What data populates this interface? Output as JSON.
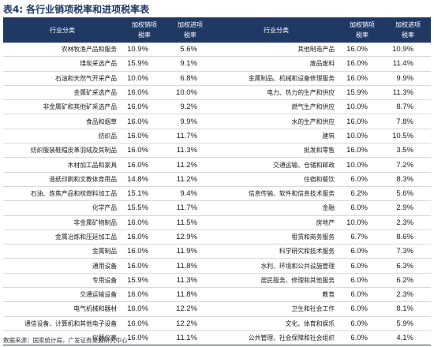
{
  "caption": {
    "number": "表4:",
    "title": "各行业销项税率和进项税率表"
  },
  "headers": {
    "industry_left": "行业分类",
    "output_tax_left": [
      "加权销项",
      "税率"
    ],
    "input_tax_left": [
      "加权进项",
      "税率"
    ],
    "industry_right": "行业分类",
    "output_tax_right": [
      "加权销项",
      "税率"
    ],
    "input_tax_right": [
      "加权进项",
      "税率"
    ]
  },
  "rows": [
    {
      "left": [
        "农林牧渔产品和服务",
        "10.9%",
        "5.6%"
      ],
      "right": [
        "其他制造产品",
        "16.0%",
        "10.9%"
      ]
    },
    {
      "left": [
        "煤炭采选产品",
        "15.9%",
        "9.1%"
      ],
      "right": [
        "废品废料",
        "16.0%",
        "11.4%"
      ]
    },
    {
      "left": [
        "石油和天然气开采产品",
        "10.0%",
        "6.8%"
      ],
      "right": [
        "金属制品、机械和设备修理服务",
        "16.0%",
        "9.9%"
      ]
    },
    {
      "left": [
        "金属矿采选产品",
        "16.0%",
        "10.0%"
      ],
      "right": [
        "电力、热力的生产和供应",
        "15.9%",
        "11.3%"
      ]
    },
    {
      "left": [
        "非金属矿和其他矿采选产品",
        "16.0%",
        "9.2%"
      ],
      "right": [
        "燃气生产和供应",
        "10.0%",
        "8.7%"
      ]
    },
    {
      "left": [
        "食品和烟草",
        "16.0%",
        "9.9%"
      ],
      "right": [
        "水的生产和供应",
        "16.0%",
        "7.8%"
      ]
    },
    {
      "left": [
        "纺织品",
        "16.0%",
        "11.7%"
      ],
      "right": [
        "建筑",
        "10.0%",
        "10.5%"
      ]
    },
    {
      "left": [
        "纺织服装鞋帽皮革羽绒及其制品",
        "16.0%",
        "11.3%"
      ],
      "right": [
        "批发和零售",
        "16.0%",
        "3.5%"
      ]
    },
    {
      "left": [
        "木材加工品和家具",
        "16.0%",
        "11.2%"
      ],
      "right": [
        "交通运输、仓储和邮政",
        "10.0%",
        "7.2%"
      ]
    },
    {
      "left": [
        "造纸印刷和文教体育用品",
        "14.8%",
        "11.2%"
      ],
      "right": [
        "住宿和餐饮",
        "6.0%",
        "8.3%"
      ]
    },
    {
      "left": [
        "石油、炼焦产品和核燃料加工品",
        "15.1%",
        "9.4%"
      ],
      "right": [
        "信息传输、软件和信息技术服务",
        "6.2%",
        "5.6%"
      ]
    },
    {
      "left": [
        "化学产品",
        "15.5%",
        "11.7%"
      ],
      "right": [
        "金融",
        "6.0%",
        "2.9%"
      ]
    },
    {
      "left": [
        "非金属矿物制品",
        "16.0%",
        "11.5%"
      ],
      "right": [
        "房地产",
        "10.0%",
        "2.3%"
      ]
    },
    {
      "left": [
        "金属冶炼和压延加工品",
        "16.0%",
        "12.9%"
      ],
      "right": [
        "租赁和商务服务",
        "6.7%",
        "8.6%"
      ]
    },
    {
      "left": [
        "金属制品",
        "16.0%",
        "11.9%"
      ],
      "right": [
        "科学研究和技术服务",
        "6.0%",
        "7.3%"
      ]
    },
    {
      "left": [
        "通用设备",
        "16.0%",
        "11.8%"
      ],
      "right": [
        "水利、环境和公共设施管理",
        "6.0%",
        "6.3%"
      ]
    },
    {
      "left": [
        "专用设备",
        "15.9%",
        "11.3%"
      ],
      "right": [
        "居民服务、修理和其他服务",
        "6.0%",
        "6.2%"
      ]
    },
    {
      "left": [
        "交通运输设备",
        "16.0%",
        "11.8%"
      ],
      "right": [
        "教育",
        "6.0%",
        "2.3%"
      ]
    },
    {
      "left": [
        "电气机械和器材",
        "16.0%",
        "12.2%"
      ],
      "right": [
        "卫生和社会工作",
        "6.0%",
        "8.1%"
      ]
    },
    {
      "left": [
        "通信设备、计算机和其他电子设备",
        "16.0%",
        "12.2%"
      ],
      "right": [
        "文化、体育和娱乐",
        "6.0%",
        "5.9%"
      ]
    },
    {
      "left": [
        "仪器仪表",
        "16.0%",
        "11.1%"
      ],
      "right": [
        "公共管理、社会保障和社会组织",
        "6.0%",
        "4.1%"
      ]
    }
  ],
  "source": "数据来源：国家统计局，广发证券发展研究中心"
}
